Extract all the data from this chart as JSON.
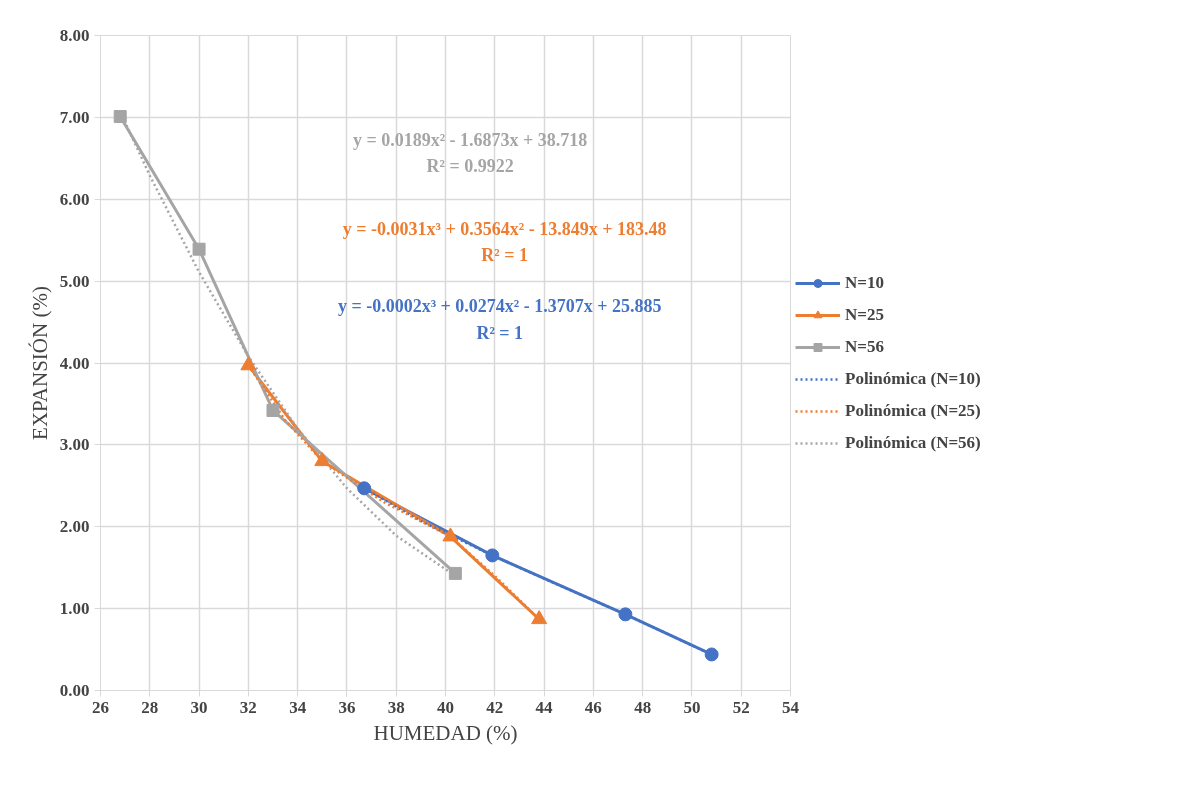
{
  "chart_data": {
    "type": "line",
    "xlabel": "HUMEDAD (%)",
    "ylabel": "EXPANSIÓN (%)",
    "xlim": [
      26,
      54
    ],
    "xticks": [
      26,
      28,
      30,
      32,
      34,
      36,
      38,
      40,
      42,
      44,
      46,
      48,
      50,
      52,
      54
    ],
    "ylim": [
      0,
      8
    ],
    "yticks": [
      {
        "value": 0,
        "label": "0.00"
      },
      {
        "value": 1,
        "label": "1.00"
      },
      {
        "value": 2,
        "label": "2.00"
      },
      {
        "value": 3,
        "label": "3.00"
      },
      {
        "value": 4,
        "label": "4.00"
      },
      {
        "value": 5,
        "label": "5.00"
      },
      {
        "value": 6,
        "label": "6.00"
      },
      {
        "value": 7,
        "label": "7.00"
      },
      {
        "value": 8,
        "label": "8.00"
      }
    ],
    "grid": true,
    "legend": "right",
    "line_style": "solid",
    "series": [
      {
        "name": "N=10",
        "color": "#4472c4",
        "marker": "circle",
        "x": [
          36.7,
          41.9,
          47.3,
          50.8
        ],
        "values": [
          2.47,
          1.65,
          0.93,
          0.44
        ]
      },
      {
        "name": "N=25",
        "color": "#ed7d31",
        "marker": "triangle",
        "x": [
          32,
          35,
          40.2,
          43.8
        ],
        "values": [
          3.97,
          2.8,
          1.88,
          0.87
        ]
      },
      {
        "name": "N=56",
        "color": "#a5a5a5",
        "marker": "square",
        "x": [
          26.8,
          30,
          33,
          40.4
        ],
        "values": [
          7.01,
          5.39,
          3.42,
          1.43
        ]
      },
      {
        "name": "Polinómica (N=10)",
        "color": "#4472c4",
        "marker": "none",
        "line_style": "dotted",
        "x": [
          36.7,
          39,
          41.9,
          44.5,
          47.3,
          50.8
        ],
        "values": [
          2.47,
          2.07,
          1.65,
          1.3,
          0.93,
          0.44
        ]
      },
      {
        "name": "Polinómica (N=25)",
        "color": "#ed7d31",
        "marker": "none",
        "line_style": "dotted",
        "x": [
          32,
          33.5,
          35,
          37.5,
          40.2,
          42,
          43.8
        ],
        "values": [
          3.97,
          3.3,
          2.8,
          2.3,
          1.88,
          1.4,
          0.87
        ]
      },
      {
        "name": "Polinómica (N=56)",
        "color": "#a5a5a5",
        "marker": "none",
        "line_style": "dotted",
        "x": [
          26.8,
          28,
          30,
          32,
          34,
          36,
          38,
          40.4
        ],
        "values": [
          7.07,
          6.29,
          5.11,
          4.08,
          3.2,
          2.47,
          1.89,
          1.4
        ]
      }
    ],
    "annotations": [
      "y = 0.0189x² - 1.6873x + 38.718",
      "R² = 0.9922",
      "y = -0.0031x³ + 0.3564x² - 13.849x + 183.48",
      "R² = 1",
      "y = -0.0002x³ + 0.0274x² - 1.3707x + 25.885",
      "R² = 1"
    ]
  }
}
